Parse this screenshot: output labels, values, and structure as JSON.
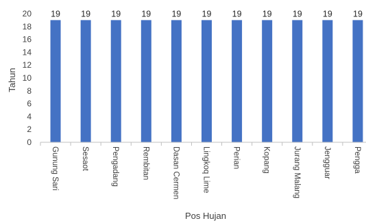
{
  "chart_data": {
    "type": "bar",
    "title": "",
    "xlabel": "Pos Hujan",
    "ylabel": "Tahun",
    "categories": [
      "Gunung Sari",
      "Sesaot",
      "Pengadang",
      "Rembitan",
      "Dasan Cermen",
      "Lingkoq Lime",
      "Perian",
      "Kopang",
      "Jurang Malang",
      "Jengguar",
      "Pengga"
    ],
    "values": [
      19,
      19,
      19,
      19,
      19,
      19,
      19,
      19,
      19,
      19,
      19
    ],
    "data_labels": [
      "19",
      "19",
      "19",
      "19",
      "19",
      "19",
      "19",
      "19",
      "19",
      "19",
      "19"
    ],
    "ylim": [
      0,
      20
    ],
    "yticks": [
      0,
      2,
      4,
      6,
      8,
      10,
      12,
      14,
      16,
      18,
      20
    ],
    "grid": false,
    "legend": "none",
    "bar_color": "#4472C4"
  }
}
